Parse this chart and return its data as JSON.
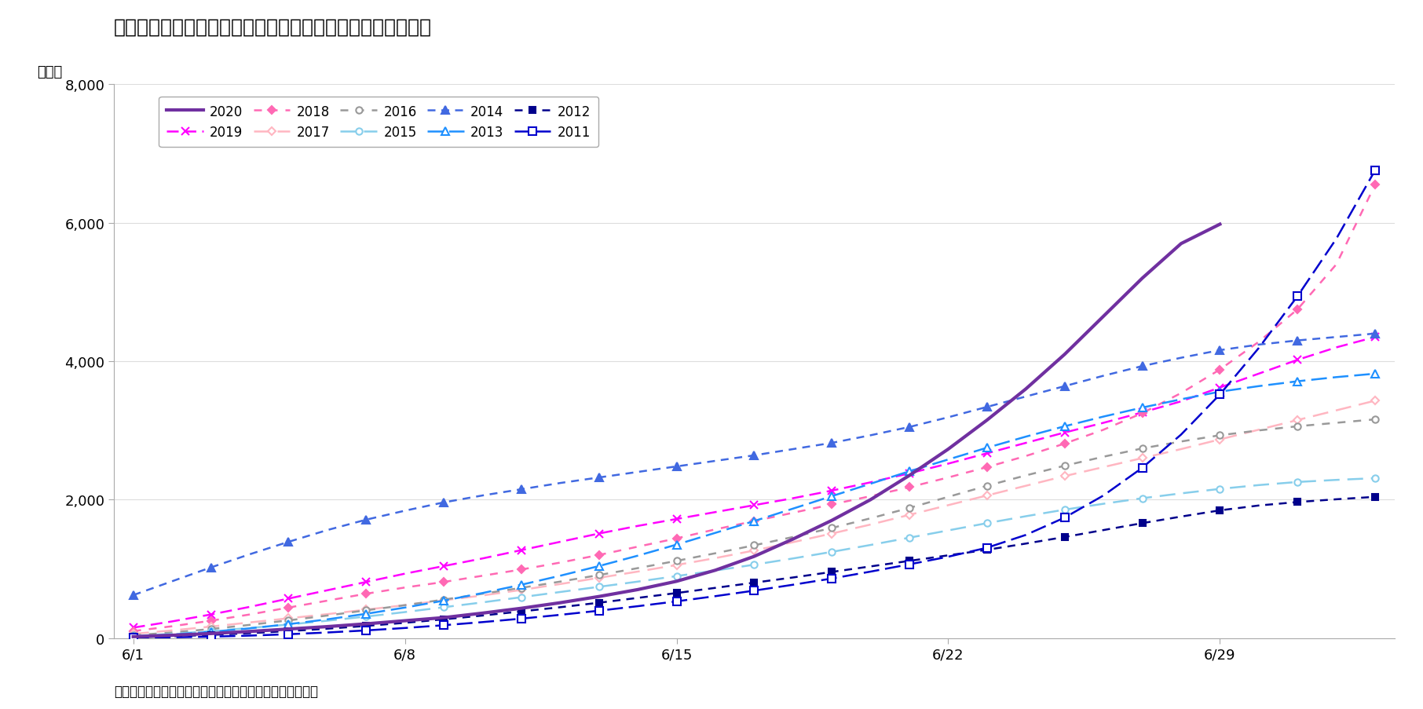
{
  "title": "図表１　熱中症による救急搬送者数（６月１日からの累計）",
  "ylabel": "（人）",
  "source": "（資料）総務省消防庁「熱中症による救急搬送人員」各週",
  "ylim": [
    0,
    8000
  ],
  "yticks": [
    0,
    2000,
    4000,
    6000,
    8000
  ],
  "x_tick_positions": [
    0,
    7,
    14,
    21,
    28
  ],
  "x_tick_labels": [
    "6/1",
    "6/8",
    "6/15",
    "6/22",
    "6/29"
  ],
  "xlim": [
    -0.5,
    32.5
  ],
  "series": [
    {
      "year": "2020",
      "color": "#7030A0",
      "linestyle": "solid",
      "marker": null,
      "markerfilled": true,
      "linewidth": 3.0,
      "markersize": 0,
      "markevery": 1,
      "data_x": [
        0,
        1,
        2,
        3,
        4,
        5,
        6,
        7,
        8,
        9,
        10,
        11,
        12,
        13,
        14,
        15,
        16,
        17,
        18,
        19,
        20,
        21,
        22,
        23,
        24,
        25,
        26,
        27,
        28
      ],
      "data_y": [
        20,
        40,
        65,
        95,
        130,
        165,
        205,
        250,
        295,
        360,
        430,
        510,
        600,
        700,
        820,
        980,
        1180,
        1430,
        1700,
        2000,
        2350,
        2730,
        3150,
        3600,
        4100,
        4650,
        5200,
        5700,
        5980
      ]
    },
    {
      "year": "2019",
      "color": "#FF00FF",
      "linestyle": "dashed",
      "marker": "x",
      "markerfilled": true,
      "linewidth": 1.8,
      "markersize": 7,
      "markevery": 2,
      "dashes": [
        6,
        3
      ],
      "data_x": [
        0,
        1,
        2,
        3,
        4,
        5,
        6,
        7,
        8,
        9,
        10,
        11,
        12,
        13,
        14,
        15,
        16,
        17,
        18,
        19,
        20,
        21,
        22,
        23,
        24,
        25,
        26,
        27,
        28,
        29,
        30,
        31,
        32
      ],
      "data_y": [
        150,
        240,
        340,
        450,
        570,
        690,
        810,
        930,
        1040,
        1150,
        1270,
        1390,
        1510,
        1620,
        1720,
        1820,
        1920,
        2020,
        2130,
        2250,
        2380,
        2520,
        2670,
        2820,
        2970,
        3110,
        3260,
        3420,
        3620,
        3820,
        4020,
        4200,
        4350
      ]
    },
    {
      "year": "2018",
      "color": "#FF69B4",
      "linestyle": "dashed",
      "marker": "D",
      "markerfilled": true,
      "linewidth": 1.8,
      "markersize": 5,
      "markevery": 2,
      "dashes": [
        4,
        4
      ],
      "data_x": [
        0,
        1,
        2,
        3,
        4,
        5,
        6,
        7,
        8,
        9,
        10,
        11,
        12,
        13,
        14,
        15,
        16,
        17,
        18,
        19,
        20,
        21,
        22,
        23,
        24,
        25,
        26,
        27,
        28,
        29,
        30,
        31,
        32
      ],
      "data_y": [
        100,
        170,
        250,
        340,
        440,
        540,
        640,
        730,
        810,
        900,
        990,
        1090,
        1200,
        1320,
        1440,
        1570,
        1690,
        1810,
        1930,
        2050,
        2180,
        2320,
        2470,
        2630,
        2810,
        3010,
        3250,
        3540,
        3880,
        4280,
        4750,
        5400,
        6550
      ]
    },
    {
      "year": "2017",
      "color": "#FFB6C1",
      "linestyle": "dashed",
      "marker": "D",
      "markerfilled": false,
      "linewidth": 1.8,
      "markersize": 5,
      "markevery": 2,
      "dashes": [
        8,
        4
      ],
      "data_x": [
        0,
        1,
        2,
        3,
        4,
        5,
        6,
        7,
        8,
        9,
        10,
        11,
        12,
        13,
        14,
        15,
        16,
        17,
        18,
        19,
        20,
        21,
        22,
        23,
        24,
        25,
        26,
        27,
        28,
        29,
        30,
        31,
        32
      ],
      "data_y": [
        60,
        110,
        165,
        225,
        285,
        345,
        410,
        475,
        545,
        615,
        695,
        780,
        870,
        960,
        1055,
        1155,
        1265,
        1385,
        1510,
        1640,
        1780,
        1920,
        2060,
        2200,
        2340,
        2470,
        2600,
        2730,
        2870,
        3010,
        3150,
        3290,
        3430
      ]
    },
    {
      "year": "2016",
      "color": "#999999",
      "linestyle": "dashed",
      "marker": "o",
      "markerfilled": false,
      "linewidth": 1.8,
      "markersize": 6,
      "markevery": 2,
      "dashes": [
        4,
        4
      ],
      "data_x": [
        0,
        1,
        2,
        3,
        4,
        5,
        6,
        7,
        8,
        9,
        10,
        11,
        12,
        13,
        14,
        15,
        16,
        17,
        18,
        19,
        20,
        21,
        22,
        23,
        24,
        25,
        26,
        27,
        28,
        29,
        30,
        31,
        32
      ],
      "data_y": [
        40,
        80,
        130,
        190,
        255,
        325,
        400,
        475,
        555,
        640,
        725,
        815,
        910,
        1010,
        1115,
        1225,
        1340,
        1460,
        1590,
        1730,
        1880,
        2040,
        2200,
        2350,
        2490,
        2620,
        2740,
        2840,
        2930,
        3000,
        3060,
        3110,
        3160
      ]
    },
    {
      "year": "2015",
      "color": "#87CEEB",
      "linestyle": "dashed",
      "marker": "o",
      "markerfilled": false,
      "linewidth": 1.8,
      "markersize": 6,
      "markevery": 2,
      "dashes": [
        8,
        4
      ],
      "data_x": [
        0,
        1,
        2,
        3,
        4,
        5,
        6,
        7,
        8,
        9,
        10,
        11,
        12,
        13,
        14,
        15,
        16,
        17,
        18,
        19,
        20,
        21,
        22,
        23,
        24,
        25,
        26,
        27,
        28,
        29,
        30,
        31,
        32
      ],
      "data_y": [
        30,
        60,
        100,
        145,
        195,
        250,
        310,
        375,
        445,
        515,
        590,
        665,
        740,
        815,
        895,
        975,
        1060,
        1150,
        1245,
        1345,
        1450,
        1555,
        1660,
        1760,
        1855,
        1940,
        2020,
        2090,
        2155,
        2210,
        2255,
        2285,
        2310
      ]
    },
    {
      "year": "2014",
      "color": "#4169E1",
      "linestyle": "dashed",
      "marker": "^",
      "markerfilled": true,
      "linewidth": 1.8,
      "markersize": 7,
      "markevery": 2,
      "dashes": [
        4,
        3
      ],
      "data_x": [
        0,
        1,
        2,
        3,
        4,
        5,
        6,
        7,
        8,
        9,
        10,
        11,
        12,
        13,
        14,
        15,
        16,
        17,
        18,
        19,
        20,
        21,
        22,
        23,
        24,
        25,
        26,
        27,
        28,
        29,
        30,
        31,
        32
      ],
      "data_y": [
        620,
        820,
        1020,
        1210,
        1390,
        1560,
        1710,
        1840,
        1960,
        2060,
        2150,
        2240,
        2320,
        2400,
        2480,
        2560,
        2640,
        2730,
        2820,
        2930,
        3050,
        3190,
        3340,
        3490,
        3640,
        3790,
        3930,
        4050,
        4160,
        4240,
        4300,
        4350,
        4400
      ]
    },
    {
      "year": "2013",
      "color": "#1E90FF",
      "linestyle": "dashed",
      "marker": "^",
      "markerfilled": false,
      "linewidth": 1.8,
      "markersize": 7,
      "markevery": 2,
      "dashes": [
        8,
        3
      ],
      "data_x": [
        0,
        1,
        2,
        3,
        4,
        5,
        6,
        7,
        8,
        9,
        10,
        11,
        12,
        13,
        14,
        15,
        16,
        17,
        18,
        19,
        20,
        21,
        22,
        23,
        24,
        25,
        26,
        27,
        28,
        29,
        30,
        31,
        32
      ],
      "data_y": [
        20,
        50,
        90,
        140,
        200,
        270,
        350,
        440,
        540,
        650,
        770,
        900,
        1040,
        1190,
        1350,
        1520,
        1690,
        1870,
        2050,
        2230,
        2410,
        2580,
        2750,
        2910,
        3060,
        3200,
        3330,
        3450,
        3560,
        3640,
        3710,
        3770,
        3820
      ]
    },
    {
      "year": "2012",
      "color": "#00008B",
      "linestyle": "dashed",
      "marker": "s",
      "markerfilled": true,
      "linewidth": 1.8,
      "markersize": 6,
      "markevery": 2,
      "dashes": [
        4,
        3
      ],
      "data_x": [
        0,
        1,
        2,
        3,
        4,
        5,
        6,
        7,
        8,
        9,
        10,
        11,
        12,
        13,
        14,
        15,
        16,
        17,
        18,
        19,
        20,
        21,
        22,
        23,
        24,
        25,
        26,
        27,
        28,
        29,
        30,
        31,
        32
      ],
      "data_y": [
        10,
        25,
        45,
        70,
        100,
        135,
        175,
        220,
        270,
        325,
        385,
        445,
        510,
        580,
        650,
        725,
        800,
        875,
        955,
        1035,
        1115,
        1195,
        1275,
        1365,
        1460,
        1560,
        1660,
        1755,
        1845,
        1915,
        1965,
        2005,
        2040
      ]
    },
    {
      "year": "2011",
      "color": "#0000CD",
      "linestyle": "dashed",
      "marker": "s",
      "markerfilled": false,
      "linewidth": 1.8,
      "markersize": 7,
      "markevery": 2,
      "dashes": [
        8,
        3
      ],
      "data_x": [
        0,
        1,
        2,
        3,
        4,
        5,
        6,
        7,
        8,
        9,
        10,
        11,
        12,
        13,
        14,
        15,
        16,
        17,
        18,
        19,
        20,
        21,
        22,
        23,
        24,
        25,
        26,
        27,
        28,
        29,
        30,
        31,
        32
      ],
      "data_y": [
        5,
        10,
        20,
        35,
        55,
        80,
        110,
        145,
        185,
        230,
        280,
        335,
        395,
        460,
        530,
        605,
        685,
        770,
        860,
        960,
        1065,
        1175,
        1305,
        1490,
        1740,
        2060,
        2460,
        2940,
        3520,
        4190,
        4940,
        5770,
        6760
      ]
    }
  ],
  "background_color": "#FFFFFF",
  "legend_ncol": 5,
  "title_fontsize": 18,
  "tick_fontsize": 13,
  "legend_fontsize": 12,
  "source_fontsize": 12
}
